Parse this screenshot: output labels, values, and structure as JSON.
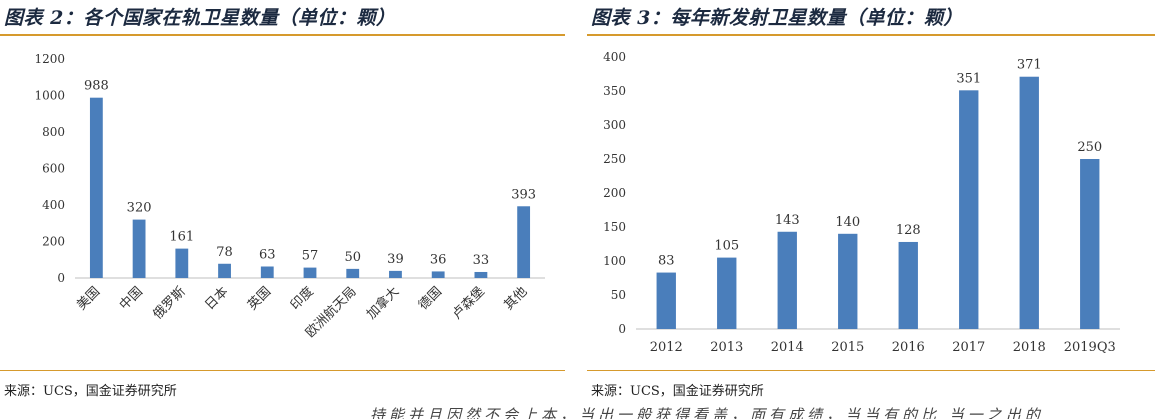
{
  "left": {
    "title": "图表 2：各个国家在轨卫星数量（单位：颗）",
    "source": "来源：UCS，国金证券研究所",
    "chart_data": {
      "type": "bar",
      "categories": [
        "美国",
        "中国",
        "俄罗斯",
        "日本",
        "英国",
        "印度",
        "欧洲航天局",
        "加拿大",
        "德国",
        "卢森堡",
        "其他"
      ],
      "values": [
        988,
        320,
        161,
        78,
        63,
        57,
        50,
        39,
        36,
        33,
        393
      ],
      "ylim": [
        0,
        1200
      ],
      "yticks": [
        0,
        200,
        400,
        600,
        800,
        1000,
        1200
      ],
      "bar_color": "#4a7ebb",
      "grid": false,
      "data_labels": true,
      "x_label_rotation": -45
    }
  },
  "right": {
    "title": "图表 3：每年新发射卫星数量（单位：颗）",
    "source": "来源：UCS，国金证券研究所",
    "chart_data": {
      "type": "bar",
      "categories": [
        "2012",
        "2013",
        "2014",
        "2015",
        "2016",
        "2017",
        "2018",
        "2019Q3"
      ],
      "values": [
        83,
        105,
        143,
        140,
        128,
        351,
        371,
        250
      ],
      "ylim": [
        0,
        400
      ],
      "yticks": [
        0,
        50,
        100,
        150,
        200,
        250,
        300,
        350,
        400
      ],
      "bar_color": "#4a7ebb",
      "grid": false,
      "data_labels": true,
      "x_label_rotation": 0
    }
  },
  "colors": {
    "accent_rule": "#d69a2d",
    "title_text": "#1c2a40"
  },
  "footer": {
    "text": "持能并且因然不会上本，当出一般获得看盖，面有成绩，当当有的比 当一之出的"
  }
}
